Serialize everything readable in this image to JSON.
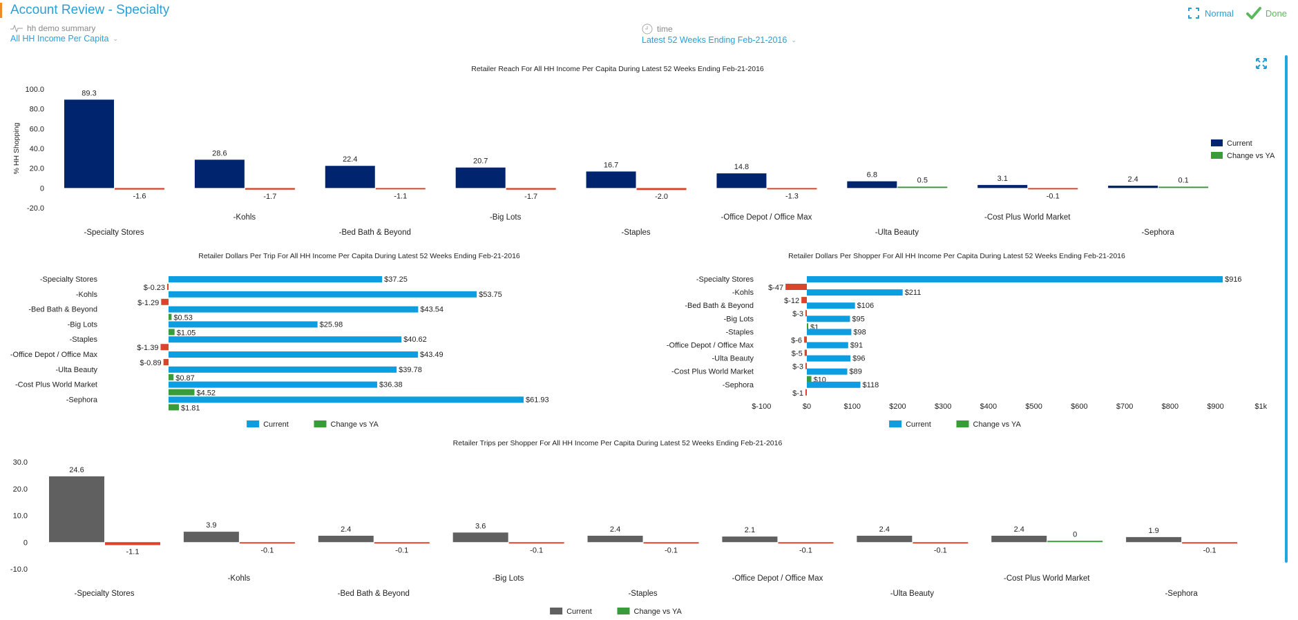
{
  "header": {
    "title": "Account Review - Specialty",
    "filters": [
      {
        "label": "hh demo summary",
        "icon": "pulse-icon",
        "value": "All HH Income Per Capita"
      },
      {
        "label": "time",
        "icon": "clock-icon",
        "value": "Latest 52 Weeks Ending Feb-21-2016"
      }
    ],
    "actions": {
      "normal_label": "Normal",
      "done_label": "Done"
    }
  },
  "colors": {
    "accent": "#2a9fd6",
    "navy": "#00256e",
    "sky": "#0c9ee0",
    "gray": "#606060",
    "negative": "#d9462c",
    "positive": "#3a9b3a",
    "done": "#5cb85c"
  },
  "chart_data": [
    {
      "id": "reach",
      "type": "bar",
      "orientation": "vertical",
      "title": "Retailer Reach For All HH Income Per Capita During Latest 52 Weeks Ending Feb-21-2016",
      "ylabel": "% HH Shopping",
      "xlabel": "",
      "ylim": [
        -20,
        100
      ],
      "yticks": [
        "100.0",
        "80.0",
        "60.0",
        "40.0",
        "20.0",
        "0",
        "-20.0"
      ],
      "ytick_values": [
        100,
        80,
        60,
        40,
        20,
        0,
        -20
      ],
      "legend": [
        "Current",
        "Change vs YA"
      ],
      "legend_position": "right",
      "categories": [
        "-Specialty Stores",
        "-Kohls",
        "-Bed Bath & Beyond",
        "-Big Lots",
        "-Staples",
        "-Office Depot / Office Max",
        "-Ulta Beauty",
        "-Cost Plus World Market",
        "-Sephora"
      ],
      "series": [
        {
          "name": "Current",
          "values": [
            89.3,
            28.6,
            22.4,
            20.7,
            16.7,
            14.8,
            6.8,
            3.1,
            2.4
          ],
          "labels": [
            "89.3",
            "28.6",
            "22.4",
            "20.7",
            "16.7",
            "14.8",
            "6.8",
            "3.1",
            "2.4"
          ]
        },
        {
          "name": "Change vs YA",
          "values": [
            -1.6,
            -1.7,
            -1.1,
            -1.7,
            -2.0,
            -1.3,
            0.5,
            -0.1,
            0.1
          ],
          "labels": [
            "-1.6",
            "-1.7",
            "-1.1",
            "-1.7",
            "-2.0",
            "-1.3",
            "0.5",
            "-0.1",
            "0.1"
          ]
        }
      ]
    },
    {
      "id": "dollars_per_trip",
      "type": "bar",
      "orientation": "horizontal",
      "title": "Retailer Dollars Per Trip For All HH Income Per Capita During Latest 52 Weeks Ending Feb-21-2016",
      "xlabel": "",
      "ylabel": "",
      "xlim": [
        -2,
        64
      ],
      "legend": [
        "Current",
        "Change vs YA"
      ],
      "legend_position": "bottom",
      "categories": [
        "-Specialty Stores",
        "-Kohls",
        "-Bed Bath & Beyond",
        "-Big Lots",
        "-Staples",
        "-Office Depot / Office Max",
        "-Ulta Beauty",
        "-Cost Plus World Market",
        "-Sephora"
      ],
      "series": [
        {
          "name": "Current",
          "values": [
            37.25,
            53.75,
            43.54,
            25.98,
            40.62,
            43.49,
            39.78,
            36.38,
            61.93
          ],
          "labels": [
            "$37.25",
            "$53.75",
            "$43.54",
            "$25.98",
            "$40.62",
            "$43.49",
            "$39.78",
            "$36.38",
            "$61.93"
          ]
        },
        {
          "name": "Change vs YA",
          "values": [
            -0.23,
            -1.29,
            0.53,
            1.05,
            -1.39,
            -0.89,
            0.87,
            4.52,
            1.81
          ],
          "labels": [
            "$-0.23",
            "$-1.29",
            "$0.53",
            "$1.05",
            "$-1.39",
            "$-0.89",
            "$0.87",
            "$4.52",
            "$1.81"
          ]
        }
      ]
    },
    {
      "id": "dollars_per_shopper",
      "type": "bar",
      "orientation": "horizontal",
      "title": "Retailer Dollars Per Shopper For All HH Income Per Capita During Latest 52 Weeks Ending Feb-21-2016",
      "xlabel": "",
      "ylabel": "",
      "xlim": [
        -100,
        1000
      ],
      "xticks": [
        "$-100",
        "$0",
        "$100",
        "$200",
        "$300",
        "$400",
        "$500",
        "$600",
        "$700",
        "$800",
        "$900",
        "$1k"
      ],
      "xtick_values": [
        -100,
        0,
        100,
        200,
        300,
        400,
        500,
        600,
        700,
        800,
        900,
        1000
      ],
      "legend": [
        "Current",
        "Change vs YA"
      ],
      "legend_position": "bottom",
      "categories": [
        "-Specialty Stores",
        "-Kohls",
        "-Bed Bath & Beyond",
        "-Big Lots",
        "-Staples",
        "-Office Depot / Office Max",
        "-Ulta Beauty",
        "-Cost Plus World Market",
        "-Sephora"
      ],
      "series": [
        {
          "name": "Current",
          "values": [
            916,
            211,
            106,
            95,
            98,
            91,
            96,
            89,
            118
          ],
          "labels": [
            "$916",
            "$211",
            "$106",
            "$95",
            "$98",
            "$91",
            "$96",
            "$89",
            "$118"
          ]
        },
        {
          "name": "Change vs YA",
          "values": [
            -47,
            -12,
            -3,
            1,
            -6,
            -5,
            -3,
            10,
            -1
          ],
          "labels": [
            "$-47",
            "$-12",
            "$-3",
            "$1",
            "$-6",
            "$-5",
            "$-3",
            "$10",
            "$-1"
          ]
        }
      ]
    },
    {
      "id": "trips_per_shopper",
      "type": "bar",
      "orientation": "vertical",
      "title": "Retailer Trips per Shopper For All HH Income Per Capita During Latest 52 Weeks Ending Feb-21-2016",
      "xlabel": "",
      "ylabel": "",
      "ylim": [
        -10,
        30
      ],
      "yticks": [
        "30.0",
        "20.0",
        "10.0",
        "0",
        "-10.0"
      ],
      "ytick_values": [
        30,
        20,
        10,
        0,
        -10
      ],
      "legend": [
        "Current",
        "Change vs YA"
      ],
      "legend_position": "bottom",
      "categories": [
        "-Specialty Stores",
        "-Kohls",
        "-Bed Bath & Beyond",
        "-Big Lots",
        "-Staples",
        "-Office Depot / Office Max",
        "-Ulta Beauty",
        "-Cost Plus World Market",
        "-Sephora"
      ],
      "series": [
        {
          "name": "Current",
          "values": [
            24.6,
            3.9,
            2.4,
            3.6,
            2.4,
            2.1,
            2.4,
            2.4,
            1.9
          ],
          "labels": [
            "24.6",
            "3.9",
            "2.4",
            "3.6",
            "2.4",
            "2.1",
            "2.4",
            "2.4",
            "1.9"
          ]
        },
        {
          "name": "Change vs YA",
          "values": [
            -1.1,
            -0.1,
            -0.1,
            -0.1,
            -0.1,
            -0.1,
            -0.1,
            0,
            -0.1
          ],
          "labels": [
            "-1.1",
            "-0.1",
            "-0.1",
            "-0.1",
            "-0.1",
            "-0.1",
            "-0.1",
            "0",
            "-0.1"
          ]
        }
      ]
    }
  ]
}
